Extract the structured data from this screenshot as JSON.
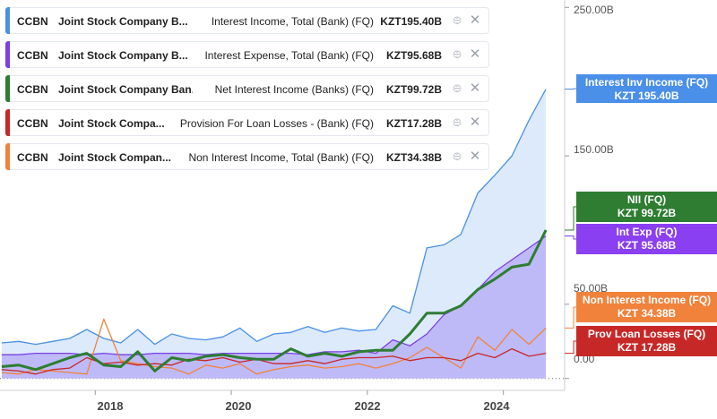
{
  "legend": [
    {
      "ticker": "CCBN",
      "company": "Joint Stock Company B...",
      "metric": "Interest Income, Total (Bank) (FQ)",
      "value": "KZT195.40B",
      "color": "#4a90e2"
    },
    {
      "ticker": "CCBN",
      "company": "Joint Stock Company B...",
      "metric": "Interest Expense, Total (Bank) (FQ)",
      "value": "KZT95.68B",
      "color": "#7b3fe4"
    },
    {
      "ticker": "CCBN",
      "company": "Joint Stock Company Ban...",
      "metric": "Net Interest Income (Banks) (FQ)",
      "value": "KZT99.72B",
      "color": "#2e7d32"
    },
    {
      "ticker": "CCBN",
      "company": "Joint Stock Compa...",
      "metric": "Provision For Loan Losses - (Bank) (FQ)",
      "value": "KZT17.28B",
      "color": "#c62828"
    },
    {
      "ticker": "CCBN",
      "company": "Joint Stock Compan...",
      "metric": "Non Interest Income, Total (Bank) (FQ)",
      "value": "KZT34.38B",
      "color": "#f0823c"
    }
  ],
  "badges": [
    {
      "line1": "Interest Inv Income (FQ)",
      "line2": "KZT 195.40B",
      "color": "#4a8fe8"
    },
    {
      "line1": "NII (FQ)",
      "line2": "KZT 99.72B",
      "color": "#2e7d32"
    },
    {
      "line1": "Int Exp (FQ)",
      "line2": "KZT 95.68B",
      "color": "#8a3ff0"
    },
    {
      "line1": "Non Interest Income (FQ)",
      "line2": "KZT 34.38B",
      "color": "#f0823c"
    },
    {
      "line1": "Prov Loan Losses (FQ)",
      "line2": "KZT 17.28B",
      "color": "#c62828"
    }
  ],
  "chart_data": {
    "type": "line",
    "y_unit": "B",
    "ylim": [
      -8,
      255
    ],
    "xlim": [
      2016.6,
      2024.9
    ],
    "y_ticks": [
      "250.00B",
      "150.00B",
      "50.00B",
      "0.00"
    ],
    "x_ticks": [
      "2018",
      "2020",
      "2022",
      "2024"
    ],
    "x": [
      2016.625,
      2016.875,
      2017.125,
      2017.375,
      2017.625,
      2017.875,
      2018.125,
      2018.375,
      2018.625,
      2018.875,
      2019.125,
      2019.375,
      2019.625,
      2019.875,
      2020.125,
      2020.375,
      2020.625,
      2020.875,
      2021.125,
      2021.375,
      2021.625,
      2021.875,
      2022.125,
      2022.375,
      2022.625,
      2022.875,
      2023.125,
      2023.375,
      2023.625,
      2023.875,
      2024.125,
      2024.375,
      2024.625
    ],
    "series": [
      {
        "name": "Interest Income, Total (Bank) (FQ)",
        "color": "#4a90e2",
        "fill": "#d7e6fb",
        "values": [
          24,
          25,
          23,
          25,
          27,
          33,
          27,
          24,
          33,
          23,
          30,
          27,
          26,
          28,
          34,
          25,
          30,
          31,
          35,
          31,
          34,
          32,
          33,
          49,
          44,
          88,
          90,
          97,
          125,
          137,
          150,
          174,
          195
        ]
      },
      {
        "name": "Net Interest Income (Banks) (FQ)",
        "color": "#2e7d32",
        "width": 3,
        "values": [
          8,
          9,
          6,
          10,
          14,
          17,
          9,
          8,
          18,
          5,
          14,
          12,
          15,
          16,
          14,
          13,
          13,
          20,
          15,
          17,
          15,
          18,
          19,
          19,
          30,
          44,
          44,
          49,
          60,
          67,
          75,
          77,
          100
        ]
      },
      {
        "name": "Interest Expense, Total (Bank) (FQ)",
        "color": "#7b3fe4",
        "fill": "#b9b1f7",
        "values": [
          16,
          16,
          17,
          17,
          17,
          16,
          17,
          16,
          16,
          17,
          17,
          17,
          16,
          17,
          17,
          17,
          17,
          17,
          16,
          18,
          18,
          19,
          17,
          26,
          22,
          30,
          43,
          49,
          60,
          72,
          80,
          88,
          96
        ]
      },
      {
        "name": "Provision For Loan Losses - (Bank) (FQ)",
        "color": "#c62828",
        "values": [
          6,
          5,
          3,
          6,
          7,
          14,
          10,
          11,
          9,
          10,
          9,
          13,
          12,
          14,
          11,
          13,
          10,
          10,
          12,
          10,
          13,
          14,
          14,
          15,
          12,
          14,
          14,
          12,
          17,
          14,
          20,
          15,
          17
        ]
      },
      {
        "name": "Non Interest Income, Total (Bank) (FQ)",
        "color": "#f0823c",
        "values": [
          4,
          3,
          6,
          5,
          4,
          3,
          40,
          12,
          10,
          8,
          7,
          3,
          9,
          7,
          10,
          3,
          6,
          8,
          9,
          7,
          8,
          10,
          7,
          10,
          14,
          21,
          14,
          7,
          28,
          19,
          33,
          23,
          34
        ]
      }
    ]
  }
}
